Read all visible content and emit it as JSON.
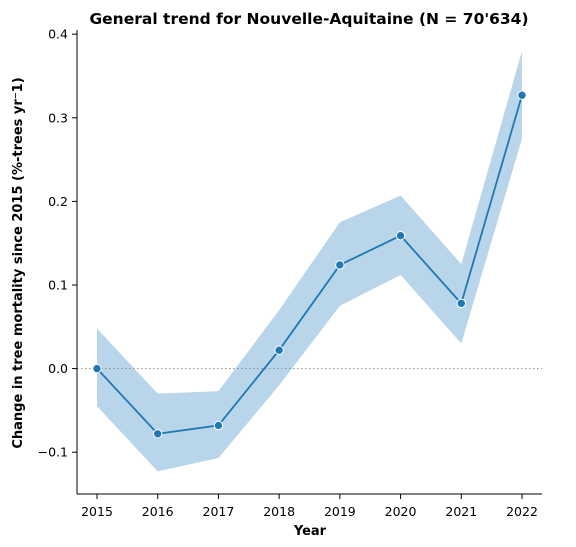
{
  "chart_data": {
    "type": "line",
    "title": "General trend for Nouvelle-Aquitaine  (N = 70'634)",
    "xlabel": "Year",
    "ylabel": "Change in tree mortality since 2015 (%-trees yr⁻1)",
    "x": [
      2015,
      2016,
      2017,
      2018,
      2019,
      2020,
      2021,
      2022
    ],
    "x_tick_labels": [
      "2015",
      "2016",
      "2017",
      "2018",
      "2019",
      "2020",
      "2021",
      "2022"
    ],
    "y_ticks": [
      -0.1,
      0.0,
      0.1,
      0.2,
      0.3,
      0.4
    ],
    "y_tick_labels": [
      "−0.1",
      "0.0",
      "0.1",
      "0.2",
      "0.3",
      "0.4"
    ],
    "ylim": [
      -0.15,
      0.405
    ],
    "series": [
      {
        "values": [
          0.0,
          -0.078,
          -0.068,
          0.022,
          0.124,
          0.159,
          0.078,
          0.327
        ],
        "ci_lower": [
          -0.045,
          -0.123,
          -0.107,
          -0.02,
          0.075,
          0.112,
          0.03,
          0.275
        ],
        "ci_upper": [
          0.048,
          -0.03,
          -0.027,
          0.07,
          0.175,
          0.207,
          0.125,
          0.38
        ]
      }
    ],
    "reference_line": {
      "y": 0.0,
      "style": "dotted"
    },
    "grid": false,
    "colors": {
      "line": "#1f77b4",
      "band": "#b9d5ea",
      "reference": "#888888"
    }
  }
}
